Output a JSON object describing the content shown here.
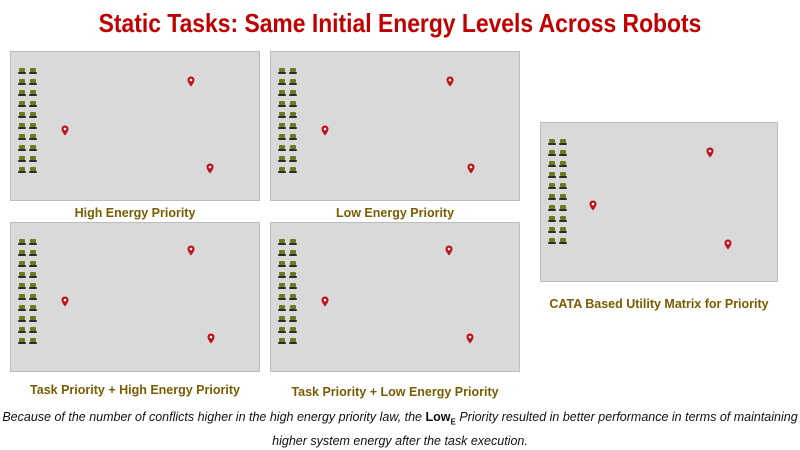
{
  "title": "Static Tasks: Same Initial Energy Levels Across Robots",
  "panels": [
    {
      "caption": "High Energy Priority"
    },
    {
      "caption": "Low Energy Priority"
    },
    {
      "caption": "Task Priority + High Energy Priority"
    },
    {
      "caption": "Task Priority + Low Energy Priority"
    },
    {
      "caption": "CATA Based Utility Matrix for Priority"
    }
  ],
  "note": {
    "part1": "Because of the number of conflicts higher in the high energy priority law, the ",
    "lowe_main": "Low",
    "lowe_sub": "E",
    "part2": " Priority resulted in better performance in terms of maintaining higher system energy after the task execution."
  },
  "colors": {
    "title": "#c00000",
    "caption": "#7a5c00",
    "panel_bg": "#d9d9d9",
    "marker": "#c0131c"
  },
  "icons": [
    "robot-icon",
    "location-marker-icon"
  ]
}
